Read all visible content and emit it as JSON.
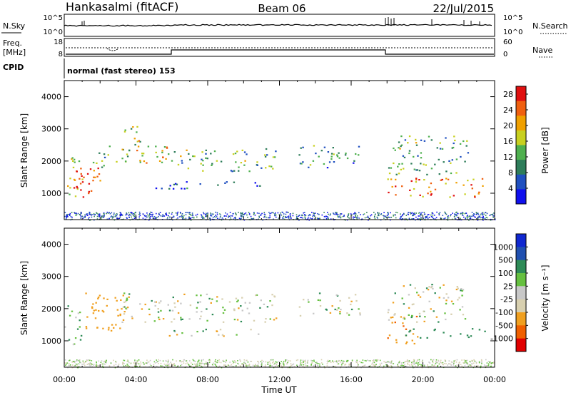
{
  "header": {
    "station": "Hankasalmi (fitACF)",
    "beam": "Beam 06",
    "date": "22/Jul/2015"
  },
  "status_panel": {
    "nsky_label": "N.Sky",
    "nsky_ticks": [
      "10^5",
      "10^0"
    ],
    "nsearch_label": "N.Search",
    "nsearch_ticks": [
      "10^5",
      "10^0"
    ],
    "freq_label": "Freq.",
    "freq_unit": "[MHz]",
    "freq_ticks": [
      "18",
      "8"
    ],
    "nave_label": "Nave",
    "nave_ticks": [
      "60",
      "0"
    ],
    "cpid_label": "CPID",
    "cpid_value": "normal (fast stereo) 153"
  },
  "x_axis": {
    "label": "Time UT",
    "ticks": [
      "00:00",
      "04:00",
      "08:00",
      "12:00",
      "16:00",
      "20:00",
      "00:00"
    ]
  },
  "colors": {
    "power": [
      "#1010ee",
      "#2050c0",
      "#2e7d5a",
      "#4fb04f",
      "#c8d020",
      "#f0a000",
      "#f06010",
      "#e01010"
    ],
    "velocity": [
      "#e00000",
      "#f06000",
      "#f0a020",
      "#d8d0b0",
      "#c8c8c8",
      "#66c040",
      "#2e8b57",
      "#2050b0",
      "#1028d0"
    ]
  },
  "chart_data": [
    {
      "type": "heatmap",
      "title": "",
      "xlabel": "",
      "ylabel": "Slant Range [km]",
      "xlim_hours": [
        0,
        24
      ],
      "ylim": [
        180,
        4500
      ],
      "yticks": [
        "1000",
        "2000",
        "3000",
        "4000"
      ],
      "colorbar": {
        "label": "Power [dB]",
        "ticks": [
          "4",
          "8",
          "12",
          "16",
          "20",
          "24",
          "28"
        ],
        "range": [
          0,
          30
        ]
      },
      "echo_regions": [
        {
          "t": [
            0.0,
            1.0
          ],
          "r": [
            800,
            2200
          ],
          "value": 20
        },
        {
          "t": [
            0.5,
            2.2
          ],
          "r": [
            900,
            1800
          ],
          "value": 26
        },
        {
          "t": [
            1.5,
            3.6
          ],
          "r": [
            1800,
            2500
          ],
          "value": 12
        },
        {
          "t": [
            3.2,
            4.2
          ],
          "r": [
            2300,
            3100
          ],
          "value": 16
        },
        {
          "t": [
            4.0,
            7.0
          ],
          "r": [
            1900,
            2500
          ],
          "value": 18
        },
        {
          "t": [
            6.5,
            11.8
          ],
          "r": [
            1700,
            2400
          ],
          "value": 12
        },
        {
          "t": [
            5.0,
            11.0
          ],
          "r": [
            1150,
            1400
          ],
          "value": 6
        },
        {
          "t": [
            13.0,
            16.5
          ],
          "r": [
            1800,
            2500
          ],
          "value": 10
        },
        {
          "t": [
            18.0,
            23.5
          ],
          "r": [
            900,
            1500
          ],
          "value": 22
        },
        {
          "t": [
            18.0,
            22.5
          ],
          "r": [
            1600,
            2800
          ],
          "value": 12
        }
      ]
    },
    {
      "type": "heatmap",
      "title": "",
      "xlabel": "Time UT",
      "ylabel": "Slant Range [km]",
      "xlim_hours": [
        0,
        24
      ],
      "ylim": [
        180,
        4500
      ],
      "yticks": [
        "1000",
        "2000",
        "3000",
        "4000"
      ],
      "colorbar": {
        "label": "Velocity [m s⁻¹]",
        "ticks": [
          "1000",
          "500",
          "100",
          "25",
          "-25",
          "-100",
          "-500",
          "-1000"
        ],
        "range": [
          -1200,
          1200
        ]
      },
      "echo_regions": [
        {
          "t": [
            0.0,
            1.0
          ],
          "r": [
            800,
            2200
          ],
          "value": 100
        },
        {
          "t": [
            1.0,
            3.5
          ],
          "r": [
            1300,
            2500
          ],
          "value": -300
        },
        {
          "t": [
            3.0,
            11.8
          ],
          "r": [
            1600,
            2500
          ],
          "value": 0
        },
        {
          "t": [
            5.0,
            11.0
          ],
          "r": [
            1150,
            1400
          ],
          "value": 0
        },
        {
          "t": [
            13.0,
            16.5
          ],
          "r": [
            1800,
            2500
          ],
          "value": 0
        },
        {
          "t": [
            18.0,
            20.0
          ],
          "r": [
            900,
            1800
          ],
          "value": -400
        },
        {
          "t": [
            19.0,
            23.5
          ],
          "r": [
            1100,
            1400
          ],
          "value": 300
        },
        {
          "t": [
            18.0,
            22.5
          ],
          "r": [
            1600,
            2800
          ],
          "value": 0
        }
      ]
    }
  ]
}
